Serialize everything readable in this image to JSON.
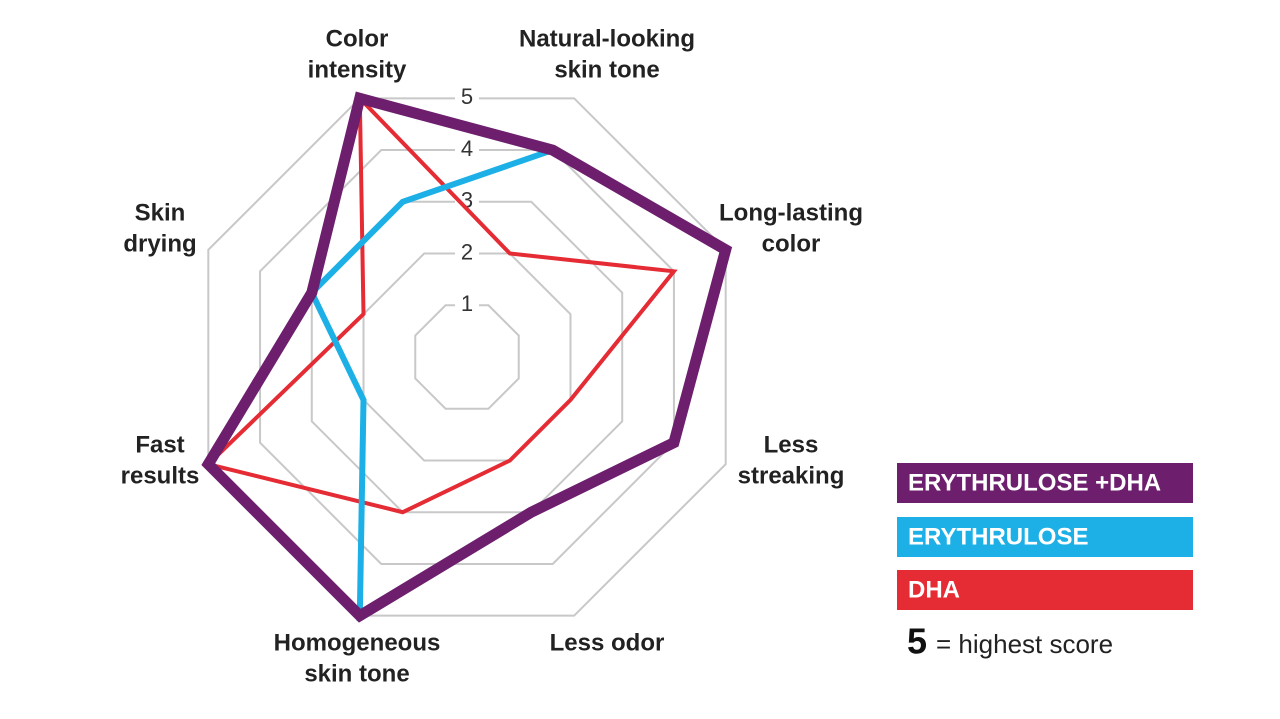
{
  "chart_data": {
    "type": "radar",
    "categories": [
      [
        "Color",
        "intensity"
      ],
      [
        "Natural-looking",
        "skin tone"
      ],
      [
        "Long-lasting",
        "color"
      ],
      [
        "Less",
        "streaking"
      ],
      [
        "Less odor"
      ],
      [
        "Homogeneous",
        "skin tone"
      ],
      [
        "Fast",
        "results"
      ],
      [
        "Skin",
        "drying"
      ]
    ],
    "series": [
      {
        "name": "ERYTHRULOSE +DHA",
        "color": "#6d1f6e",
        "values": [
          5,
          4,
          5,
          4,
          3,
          5,
          5,
          3
        ]
      },
      {
        "name": "ERYTHRULOSE",
        "color": "#1cb0e6",
        "values": [
          3,
          4,
          5,
          4,
          3,
          5,
          2,
          3
        ]
      },
      {
        "name": "DHA",
        "color": "#e52b33",
        "values": [
          5,
          2,
          4,
          2,
          2,
          3,
          5,
          2
        ]
      }
    ],
    "rlim": [
      0,
      5
    ],
    "rticks": [
      1,
      2,
      3,
      4,
      5
    ],
    "note": {
      "number": "5",
      "text": "= highest score"
    }
  }
}
